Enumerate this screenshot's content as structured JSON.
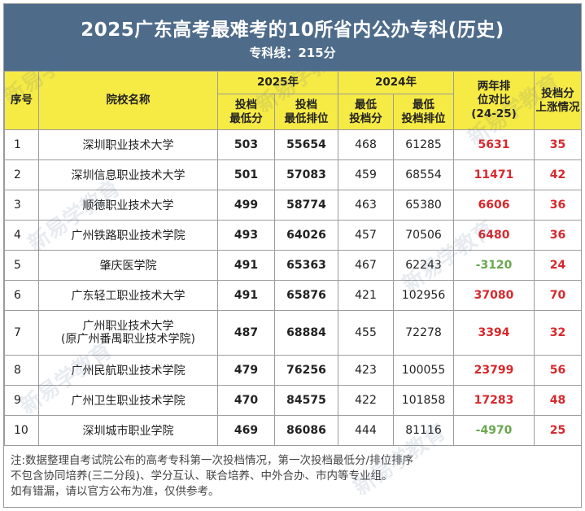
{
  "title": "2025广东高考最难考的10所省内公办专科(历史)",
  "subtitle": "专科线：215分",
  "headers": {
    "seq": "序号",
    "school": "院校名称",
    "y2025": "2025年",
    "y2024": "2024年",
    "y2025_score": [
      "投档",
      "最低分"
    ],
    "y2025_rank": [
      "投档",
      "最低排位"
    ],
    "y2024_score": [
      "最低",
      "投档分"
    ],
    "y2024_rank": [
      "最低",
      "投档排位"
    ],
    "diff": [
      "两年排",
      "位对比",
      "(24-25)"
    ],
    "rise": [
      "投档分",
      "上涨情况"
    ]
  },
  "rows": [
    {
      "seq": "1",
      "name": [
        "深圳职业技术大学"
      ],
      "score2025": "503",
      "rank2025": "55654",
      "score2024": "468",
      "rank2024": "61285",
      "diff": "5631",
      "rise": "35"
    },
    {
      "seq": "2",
      "name": [
        "深圳信息职业技术大学"
      ],
      "score2025": "501",
      "rank2025": "57083",
      "score2024": "459",
      "rank2024": "68554",
      "diff": "11471",
      "rise": "42"
    },
    {
      "seq": "3",
      "name": [
        "顺德职业技术大学"
      ],
      "score2025": "499",
      "rank2025": "58774",
      "score2024": "463",
      "rank2024": "65380",
      "diff": "6606",
      "rise": "36"
    },
    {
      "seq": "4",
      "name": [
        "广州铁路职业技术学院"
      ],
      "score2025": "493",
      "rank2025": "64026",
      "score2024": "457",
      "rank2024": "70506",
      "diff": "6480",
      "rise": "36"
    },
    {
      "seq": "5",
      "name": [
        "肇庆医学院"
      ],
      "score2025": "491",
      "rank2025": "65363",
      "score2024": "467",
      "rank2024": "62243",
      "diff": "-3120",
      "rise": "24"
    },
    {
      "seq": "6",
      "name": [
        "广东轻工职业技术大学"
      ],
      "score2025": "491",
      "rank2025": "65876",
      "score2024": "421",
      "rank2024": "102956",
      "diff": "37080",
      "rise": "70"
    },
    {
      "seq": "7",
      "name": [
        "广州职业技术大学",
        "(原广州番禺职业技术学院)"
      ],
      "score2025": "487",
      "rank2025": "68884",
      "score2024": "455",
      "rank2024": "72278",
      "diff": "3394",
      "rise": "32"
    },
    {
      "seq": "8",
      "name": [
        "广州民航职业技术学院"
      ],
      "score2025": "479",
      "rank2025": "76256",
      "score2024": "423",
      "rank2024": "100055",
      "diff": "23799",
      "rise": "56"
    },
    {
      "seq": "9",
      "name": [
        "广州卫生职业技术学院"
      ],
      "score2025": "470",
      "rank2025": "84575",
      "score2024": "422",
      "rank2024": "101858",
      "diff": "17283",
      "rise": "48"
    },
    {
      "seq": "10",
      "name": [
        "深圳城市职业学院"
      ],
      "score2025": "469",
      "rank2025": "86086",
      "score2024": "444",
      "rank2024": "81116",
      "diff": "-4970",
      "rise": "25"
    }
  ],
  "note": [
    "注:数据整理自考试院公布的高考专科第一次投档情况，第一次投档最低分/排位排序",
    "不包含协同培养(三二分段)、学分互认、联合培养、中外合办、市内等专业组。",
    "如有错漏，请以官方公布为准，仅供参考。"
  ],
  "watermark": "新易学教育",
  "colors": {
    "header_bg": "#4e6b8a",
    "table_header_bg": "#f6ea45",
    "positive": "#d8282d",
    "negative": "#6aa84f"
  }
}
